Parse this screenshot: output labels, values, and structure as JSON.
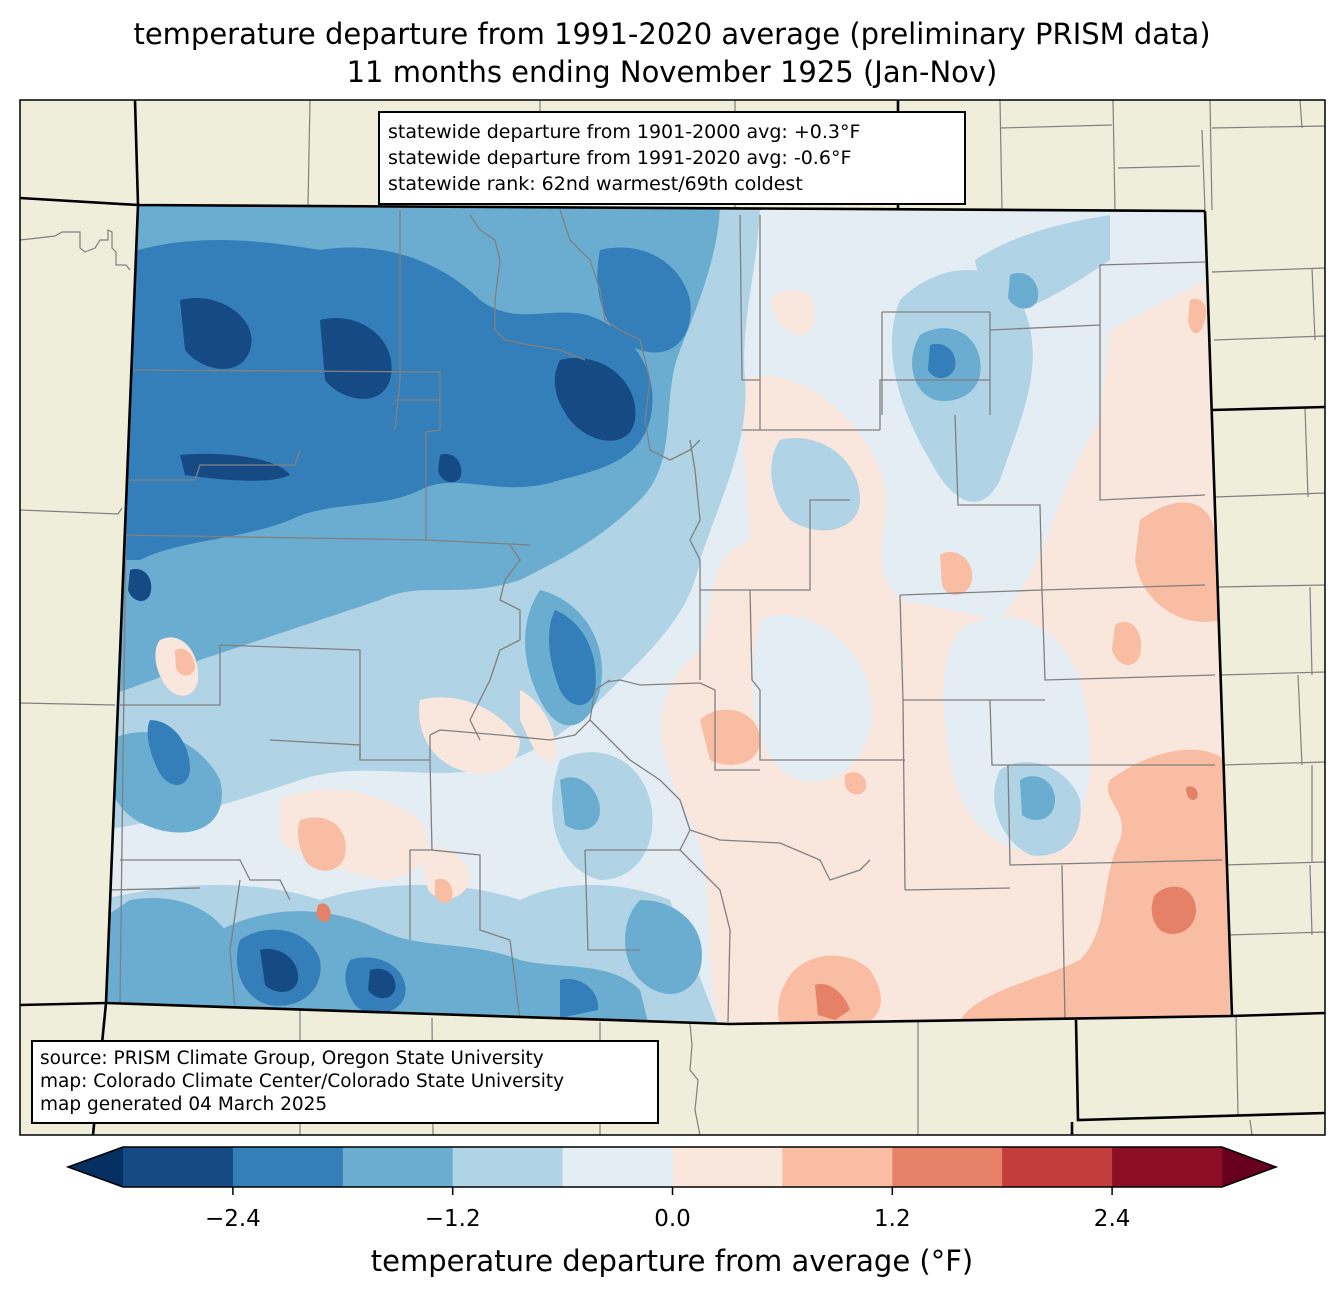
{
  "title": {
    "line1": "temperature departure from 1991-2020 average (preliminary PRISM data)",
    "line2": "11 months ending November 1925 (Jan-Nov)"
  },
  "stats_box": {
    "line1": "statewide departure from 1901-2000 avg: +0.3°F",
    "line2": "statewide departure from 1991-2020 avg: -0.6°F",
    "line3": "statewide rank: 62nd warmest/69th coldest"
  },
  "source_box": {
    "line1": "source: PRISM Climate Group, Oregon State University",
    "line2": "map: Colorado Climate Center/Colorado State University",
    "line3": "map generated 04 March 2025"
  },
  "colors": {
    "land": "#efeedb",
    "county_line": "#808080",
    "state_line": "#000000"
  },
  "chart_data": {
    "type": "heatmap",
    "title": "temperature departure from 1991-2020 average (preliminary PRISM data)",
    "subtitle": "11 months ending November 1925 (Jan-Nov)",
    "region": "Colorado",
    "colorbar": {
      "label": "temperature departure from average (°F)",
      "levels": [
        -3.0,
        -2.4,
        -1.8,
        -1.2,
        -0.6,
        0.0,
        0.6,
        1.2,
        1.8,
        2.4,
        3.0
      ],
      "colors": [
        "#164a85",
        "#347fba",
        "#6aadd1",
        "#b0d3e6",
        "#e5edf4",
        "#f9e6dd",
        "#f8bda2",
        "#e48166",
        "#c43d3d",
        "#8b0d26"
      ],
      "extend_min_color": "#053061",
      "extend_max_color": "#67001f",
      "ticks": [
        -2.4,
        -1.2,
        0.0,
        1.2,
        2.4
      ],
      "tick_labels": [
        "−2.4",
        "−1.2",
        "0.0",
        "1.2",
        "2.4"
      ],
      "extend": "both"
    },
    "summary": {
      "departure_1901_2000_avg_F": 0.3,
      "departure_1991_2020_avg_F": -0.6,
      "rank_warmest": 62,
      "rank_coldest": 69
    },
    "regional_pattern": [
      {
        "area": "northwest / north-central mountains",
        "band": "-3.0 to -1.8"
      },
      {
        "area": "west-central / southwest",
        "band": "-1.8 to -0.6"
      },
      {
        "area": "San Juan Mountains (south)",
        "band": "-3.0 to -1.8"
      },
      {
        "area": "northeast plains",
        "band": "-1.2 to 0.0"
      },
      {
        "area": "southeast plains",
        "band": "0.0 to 1.8"
      },
      {
        "area": "far east / Kansas border",
        "band": "0.6 to 1.8"
      }
    ]
  }
}
